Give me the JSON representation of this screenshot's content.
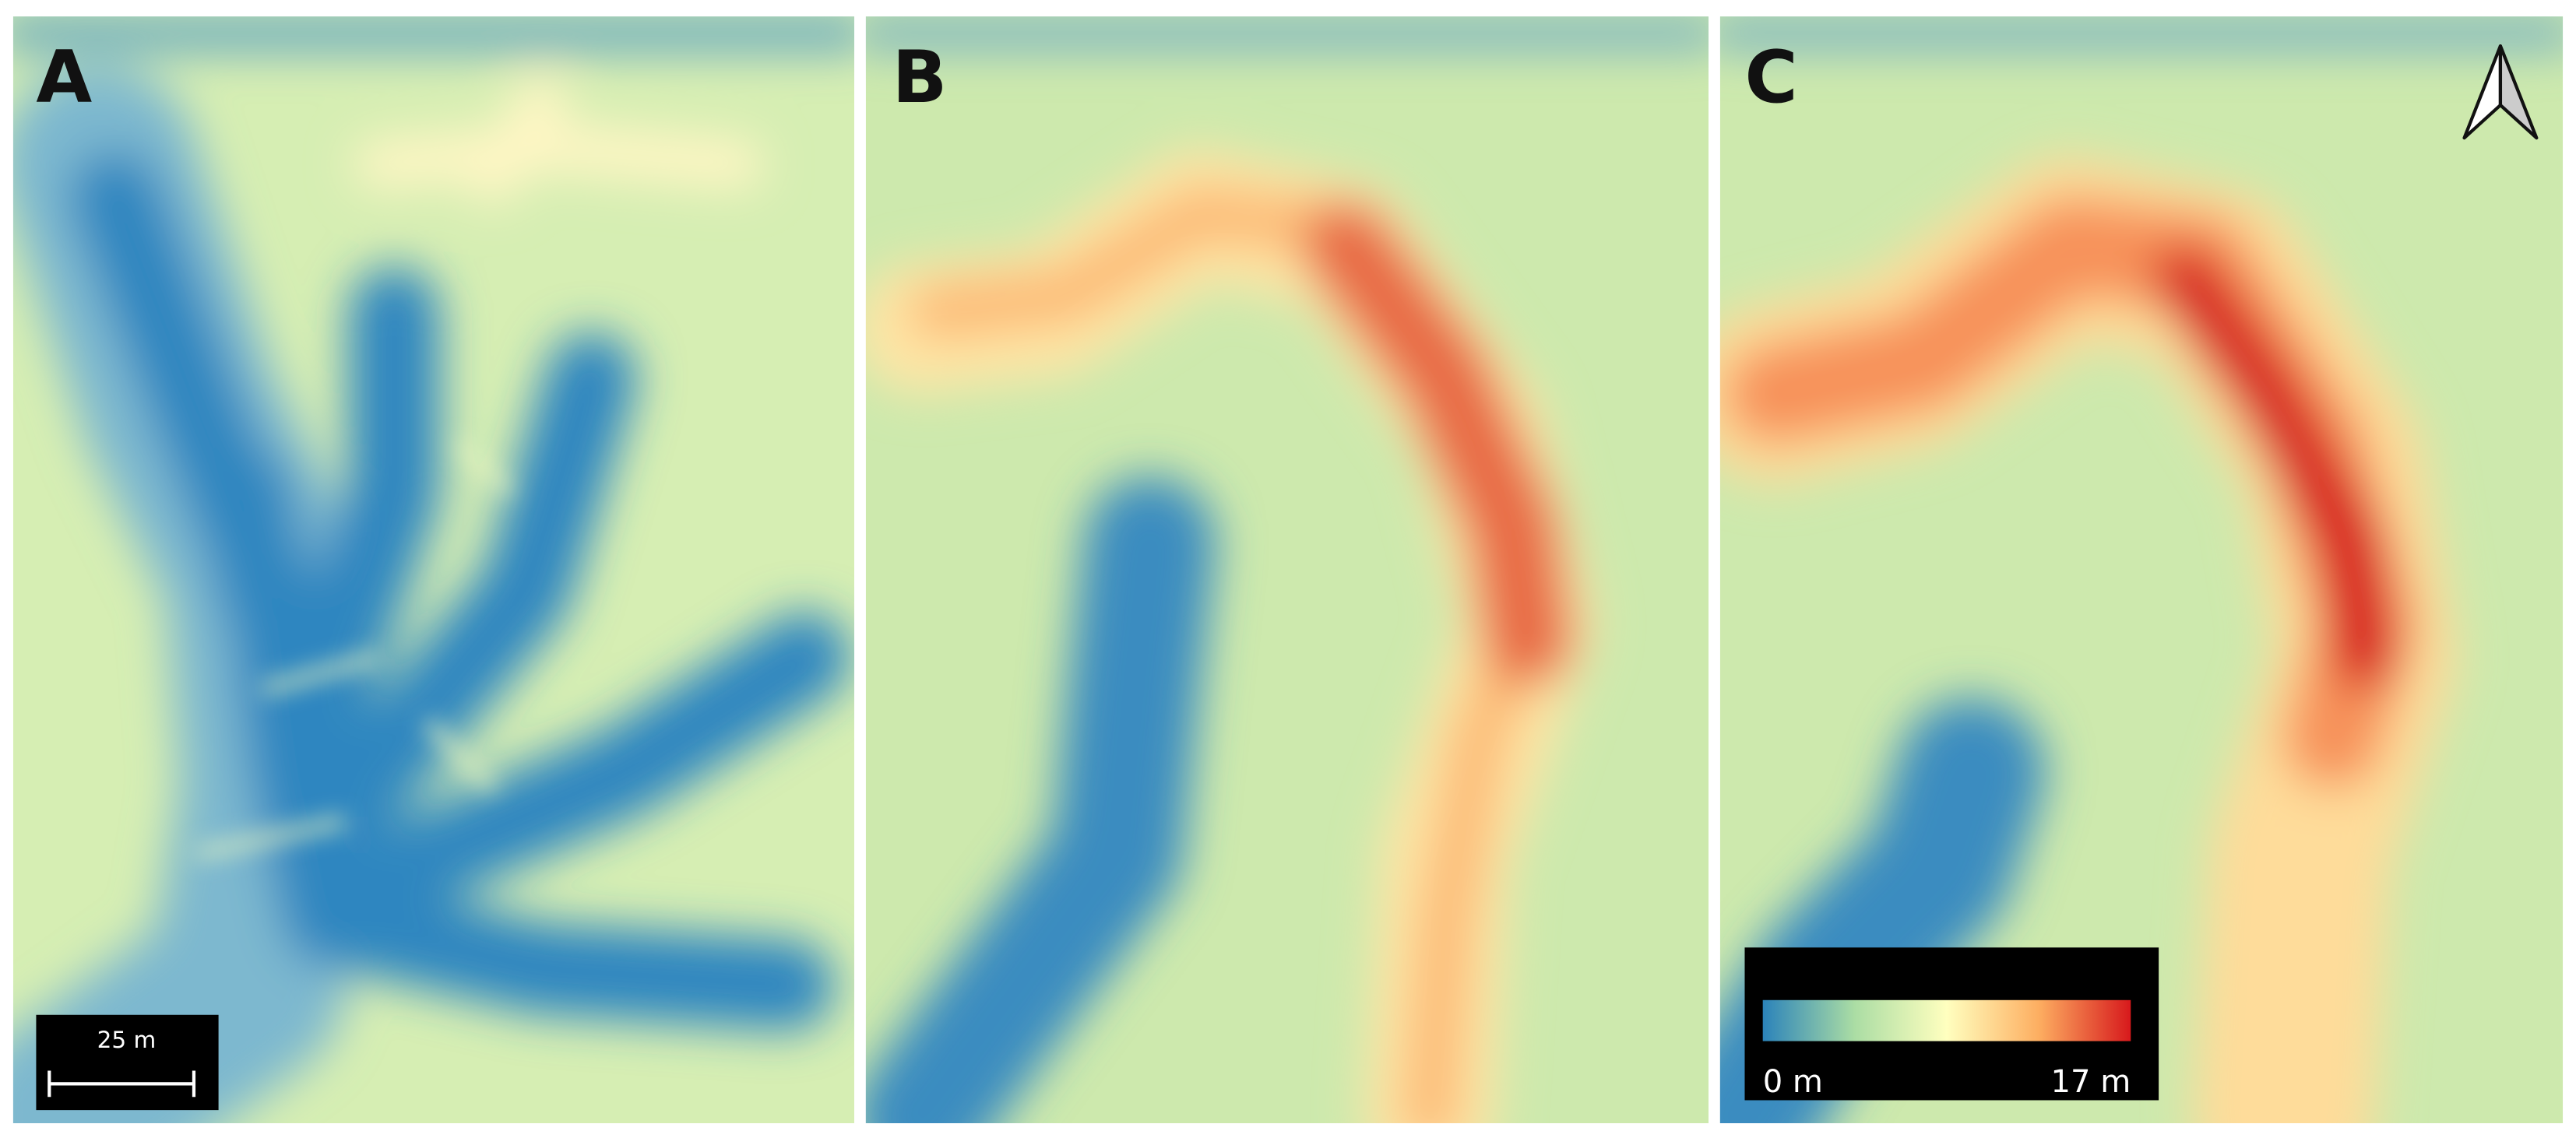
{
  "panels": [
    {
      "label": "A"
    },
    {
      "label": "B"
    },
    {
      "label": "C"
    }
  ],
  "scale_bar": {
    "label": "25 m"
  },
  "legend": {
    "min_label": "0 m",
    "max_label": "17 m"
  }
}
